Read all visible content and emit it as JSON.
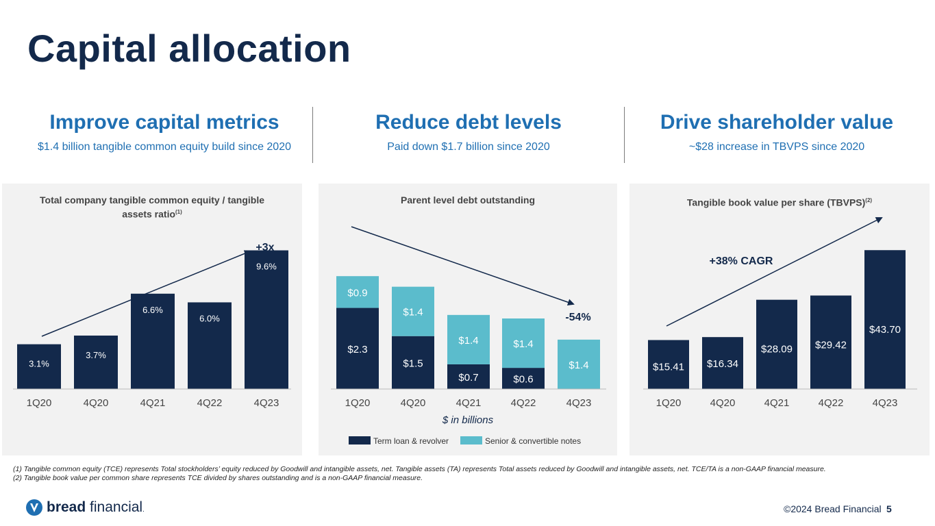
{
  "title": "Capital allocation",
  "pillars": [
    {
      "heading": "Improve capital metrics",
      "sub": "$1.4 billion tangible common equity build since 2020"
    },
    {
      "heading": "Reduce debt levels",
      "sub": "Paid down $1.7 billion since 2020"
    },
    {
      "heading": "Drive shareholder value",
      "sub": "~$28 increase in TBVPS since 2020"
    }
  ],
  "chart_data": [
    {
      "type": "bar",
      "title": "Total company tangible common equity / tangible assets ratio",
      "title_line1": "Total company tangible common equity / tangible",
      "title_line2": "assets ratio",
      "footnote_marker": "(1)",
      "categories": [
        "1Q20",
        "4Q20",
        "4Q21",
        "4Q22",
        "4Q23"
      ],
      "values": [
        3.1,
        3.7,
        6.6,
        6.0,
        9.6
      ],
      "labels": [
        "3.1%",
        "3.7%",
        "6.6%",
        "6.0%",
        "9.6%"
      ],
      "annotation": "+3x",
      "ylim": [
        0,
        11
      ],
      "color": "#13294b"
    },
    {
      "type": "bar",
      "stacked": true,
      "title": "Parent level debt outstanding",
      "xlabel": "$ in billions",
      "categories": [
        "1Q20",
        "4Q20",
        "4Q21",
        "4Q22",
        "4Q23"
      ],
      "series": [
        {
          "name": "Term loan & revolver",
          "values": [
            2.3,
            1.5,
            0.7,
            0.6,
            0
          ],
          "labels": [
            "$2.3",
            "$1.5",
            "$0.7",
            "$0.6",
            ""
          ],
          "color": "#13294b"
        },
        {
          "name": "Senior & convertible notes",
          "values": [
            0.9,
            1.4,
            1.4,
            1.4,
            1.4
          ],
          "labels": [
            "$0.9",
            "$1.4",
            "$1.4",
            "$1.4",
            "$1.4"
          ],
          "color": "#5bbccc"
        }
      ],
      "annotation": "-54%",
      "ylim": [
        0,
        3.6
      ]
    },
    {
      "type": "bar",
      "title": "Tangible book value per share (TBVPS)",
      "footnote_marker": "(2)",
      "categories": [
        "1Q20",
        "4Q20",
        "4Q21",
        "4Q22",
        "4Q23"
      ],
      "values": [
        15.41,
        16.34,
        28.09,
        29.42,
        43.7
      ],
      "labels": [
        "$15.41",
        "$16.34",
        "$28.09",
        "$29.42",
        "$43.70"
      ],
      "annotation": "+38% CAGR",
      "ylim": [
        0,
        50
      ],
      "color": "#13294b"
    }
  ],
  "footnotes": [
    "(1) Tangible common equity (TCE) represents Total stockholders’ equity reduced by Goodwill and intangible assets, net. Tangible assets (TA) represents Total assets reduced by Goodwill and intangible assets, net. TCE/TA is a non-GAAP financial measure.",
    "(2) Tangible book value per common share represents TCE divided by shares outstanding and is a non-GAAP financial measure."
  ],
  "logo": {
    "bold": "bread",
    "rest": "financial",
    "mark": "."
  },
  "copyright": "©2024 Bread Financial",
  "page_number": "5",
  "colors": {
    "navy": "#13294b",
    "teal": "#5bbccc",
    "blue": "#1f6fb2",
    "panel": "#f2f2f2"
  }
}
